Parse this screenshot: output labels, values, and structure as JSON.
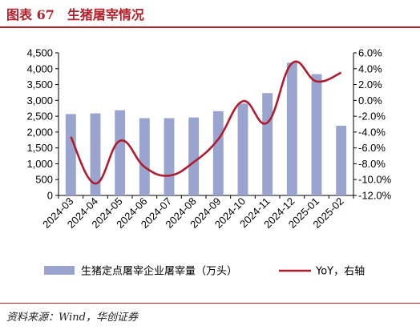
{
  "header": {
    "title": "图表 67　生猪屠宰情况"
  },
  "footer": {
    "source": "资料来源：Wind，华创证券"
  },
  "chart_data": {
    "type": "bar+line",
    "categories": [
      "2024-03",
      "2024-04",
      "2024-05",
      "2024-06",
      "2024-07",
      "2024-08",
      "2024-09",
      "2024-10",
      "2024-11",
      "2024-12",
      "2025-01",
      "2025-02"
    ],
    "series": [
      {
        "name": "生猪定点屠宰企业屠宰量（万头）",
        "type": "bar",
        "axis": "left",
        "color": "#9aa5cf",
        "values": [
          2570,
          2590,
          2690,
          2440,
          2440,
          2460,
          2660,
          2900,
          3230,
          4190,
          3830,
          2200
        ]
      },
      {
        "name": "YoY，右轴",
        "type": "line",
        "axis": "right",
        "color": "#b01c2e",
        "values": [
          -4.6,
          -10.5,
          -5.1,
          -8.4,
          -9.5,
          -7.8,
          -4.9,
          -0.1,
          -2.8,
          4.7,
          2.4,
          3.5
        ]
      }
    ],
    "y_left": {
      "min": 0,
      "max": 4500,
      "step": 500,
      "ticks": [
        "0",
        "500",
        "1,000",
        "1,500",
        "2,000",
        "2,500",
        "3,000",
        "3,500",
        "4,000",
        "4,500"
      ]
    },
    "y_right": {
      "min": -12,
      "max": 6,
      "step": 2,
      "ticks": [
        "-12.0%",
        "-10.0%",
        "-8.0%",
        "-6.0%",
        "-4.0%",
        "-2.0%",
        "0.0%",
        "2.0%",
        "4.0%",
        "6.0%"
      ]
    },
    "grid": false,
    "legend_position": "bottom"
  }
}
